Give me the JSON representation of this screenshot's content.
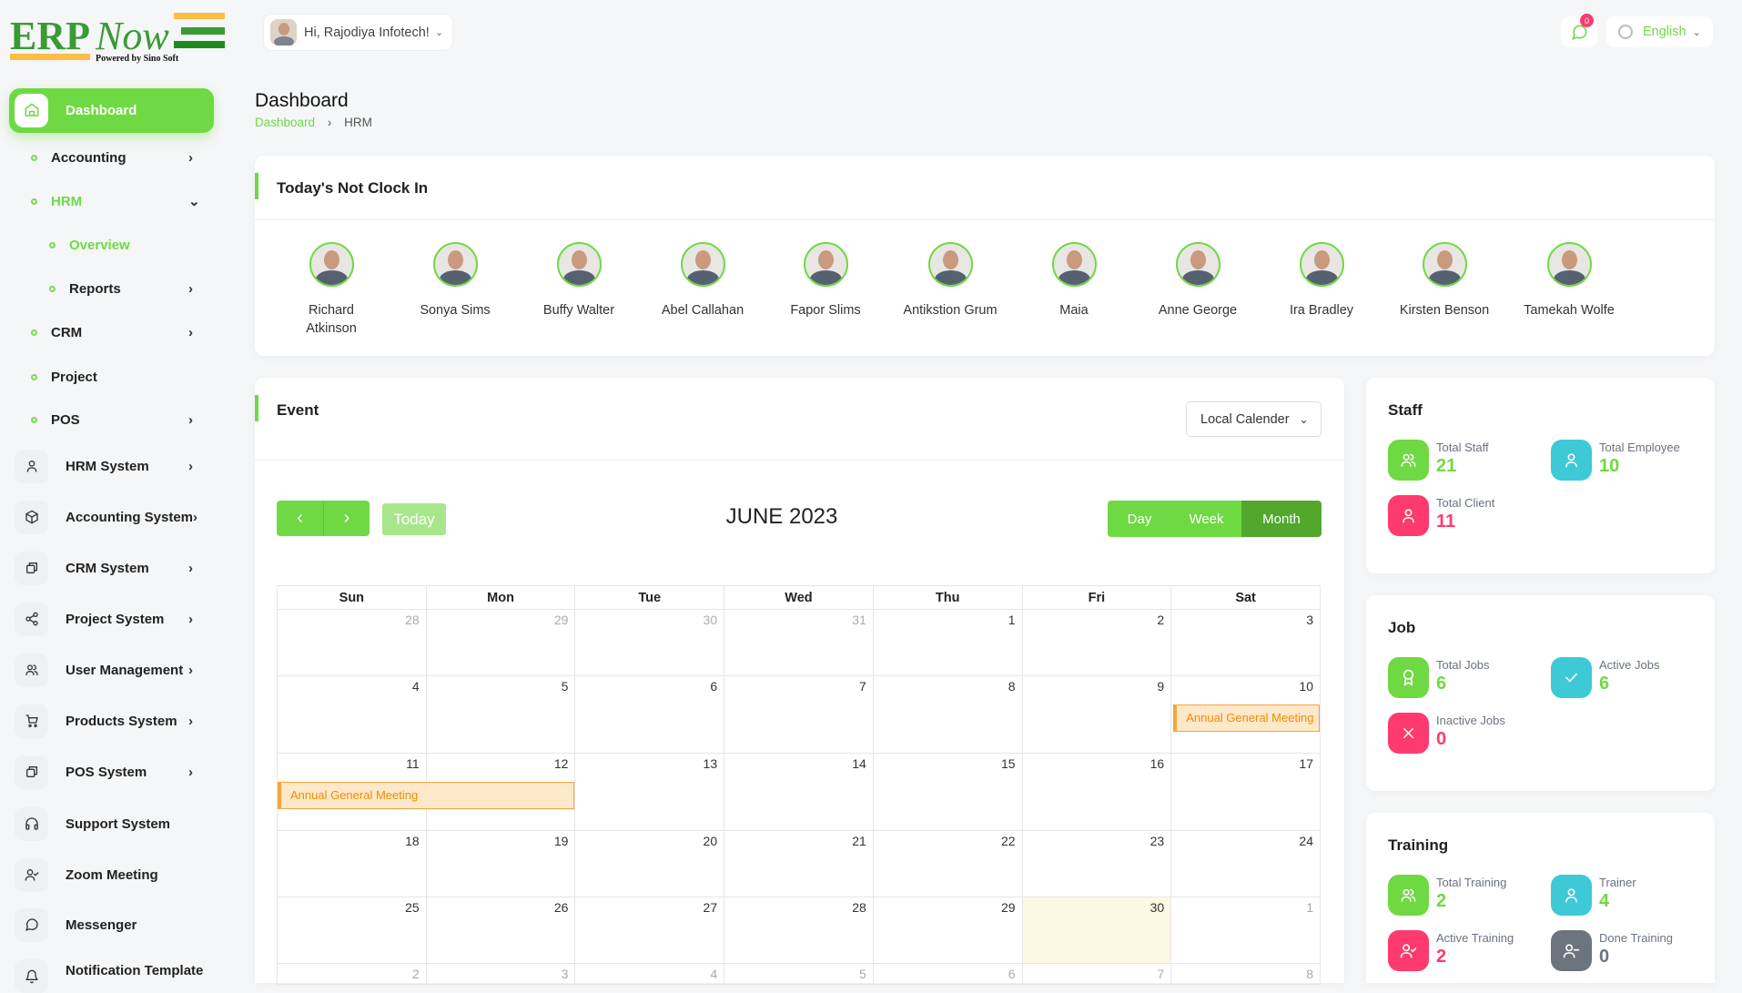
{
  "brand": {
    "logo_text": "ERPNow",
    "tagline": "Powered by Sino Soft"
  },
  "header": {
    "greeting": "Hi, Rajodiya Infotech!",
    "notification_count": "0",
    "language": "English"
  },
  "sidebar": {
    "items": [
      {
        "label": "Dashboard",
        "type": "main-active",
        "icon": "home-icon"
      },
      {
        "label": "Accounting",
        "type": "sub",
        "chev": "right"
      },
      {
        "label": "HRM",
        "type": "sub-open",
        "chev": "down"
      },
      {
        "label": "Overview",
        "type": "subsub-active"
      },
      {
        "label": "Reports",
        "type": "subsub",
        "chev": "right"
      },
      {
        "label": "CRM",
        "type": "sub",
        "chev": "right"
      },
      {
        "label": "Project",
        "type": "sub"
      },
      {
        "label": "POS",
        "type": "sub",
        "chev": "right"
      },
      {
        "label": "HRM System",
        "type": "main",
        "icon": "user-icon",
        "chev": "right"
      },
      {
        "label": "Accounting System",
        "type": "main",
        "icon": "box-icon",
        "chev": "right"
      },
      {
        "label": "CRM System",
        "type": "main",
        "icon": "layers-icon",
        "chev": "right"
      },
      {
        "label": "Project System",
        "type": "main",
        "icon": "share-icon",
        "chev": "right"
      },
      {
        "label": "User Management",
        "type": "main",
        "icon": "users-icon",
        "chev": "right"
      },
      {
        "label": "Products System",
        "type": "main",
        "icon": "cart-icon",
        "chev": "right"
      },
      {
        "label": "POS System",
        "type": "main",
        "icon": "layers-icon",
        "chev": "right"
      },
      {
        "label": "Support System",
        "type": "main",
        "icon": "headphones-icon"
      },
      {
        "label": "Zoom Meeting",
        "type": "main",
        "icon": "user-check-icon"
      },
      {
        "label": "Messenger",
        "type": "main",
        "icon": "message-icon"
      },
      {
        "label": "Notification Template",
        "type": "main",
        "icon": "bell-icon"
      }
    ]
  },
  "page": {
    "title": "Dashboard",
    "breadcrumb": [
      "Dashboard",
      "HRM"
    ]
  },
  "not_clock_in": {
    "title": "Today's Not Clock In",
    "people": [
      "Richard Atkinson",
      "Sonya Sims",
      "Buffy Walter",
      "Abel Callahan",
      "Fapor Slims",
      "Antikstion Grum",
      "Maia",
      "Anne George",
      "Ira Bradley",
      "Kirsten Benson",
      "Tamekah Wolfe"
    ]
  },
  "event": {
    "title": "Event",
    "calendar_select": "Local Calender",
    "today_label": "Today",
    "month_title": "JUNE 2023",
    "views": [
      "Day",
      "Week",
      "Month"
    ],
    "active_view": "Month",
    "weekdays": [
      "Sun",
      "Mon",
      "Tue",
      "Wed",
      "Thu",
      "Fri",
      "Sat"
    ],
    "weeks": [
      [
        28,
        29,
        30,
        31,
        1,
        2,
        3
      ],
      [
        4,
        5,
        6,
        7,
        8,
        9,
        10
      ],
      [
        11,
        12,
        13,
        14,
        15,
        16,
        17
      ],
      [
        18,
        19,
        20,
        21,
        22,
        23,
        24
      ],
      [
        25,
        26,
        27,
        28,
        29,
        30,
        1
      ],
      [
        2,
        3,
        4,
        5,
        6,
        7,
        8
      ]
    ],
    "events": [
      {
        "title": "Annual General Meeting",
        "week": 1,
        "start_day": 6,
        "span": 1
      },
      {
        "title": "Annual General Meeting",
        "week": 2,
        "start_day": 0,
        "span": 2
      }
    ],
    "today_date": 30
  },
  "colors": {
    "accent": "#6fd943",
    "cyan": "#3ec9d6",
    "red": "#ff3a6e",
    "gray": "#6c757d",
    "event_bg": "#fde9c9",
    "event_border": "#f9a43b"
  },
  "staff": {
    "title": "Staff",
    "items": [
      {
        "label": "Total Staff",
        "value": "21",
        "color": "green",
        "icon": "users-icon",
        "vcolor": "green"
      },
      {
        "label": "Total Employee",
        "value": "10",
        "color": "cyan",
        "icon": "user-icon",
        "vcolor": "green"
      },
      {
        "label": "Total Client",
        "value": "11",
        "color": "red",
        "icon": "user-icon",
        "vcolor": "red"
      }
    ]
  },
  "job": {
    "title": "Job",
    "items": [
      {
        "label": "Total Jobs",
        "value": "6",
        "color": "green",
        "icon": "award-icon",
        "vcolor": "green"
      },
      {
        "label": "Active Jobs",
        "value": "6",
        "color": "cyan",
        "icon": "check-icon",
        "vcolor": "green"
      },
      {
        "label": "Inactive Jobs",
        "value": "0",
        "color": "red",
        "icon": "x-icon",
        "vcolor": "red"
      }
    ]
  },
  "training": {
    "title": "Training",
    "items": [
      {
        "label": "Total Training",
        "value": "2",
        "color": "green",
        "icon": "users-icon",
        "vcolor": "green"
      },
      {
        "label": "Trainer",
        "value": "4",
        "color": "cyan",
        "icon": "user-icon",
        "vcolor": "green"
      },
      {
        "label": "Active Training",
        "value": "2",
        "color": "red",
        "icon": "user-check-icon",
        "vcolor": "red"
      },
      {
        "label": "Done Training",
        "value": "0",
        "color": "gray",
        "icon": "user-minus-icon",
        "vcolor": "gray"
      }
    ]
  }
}
